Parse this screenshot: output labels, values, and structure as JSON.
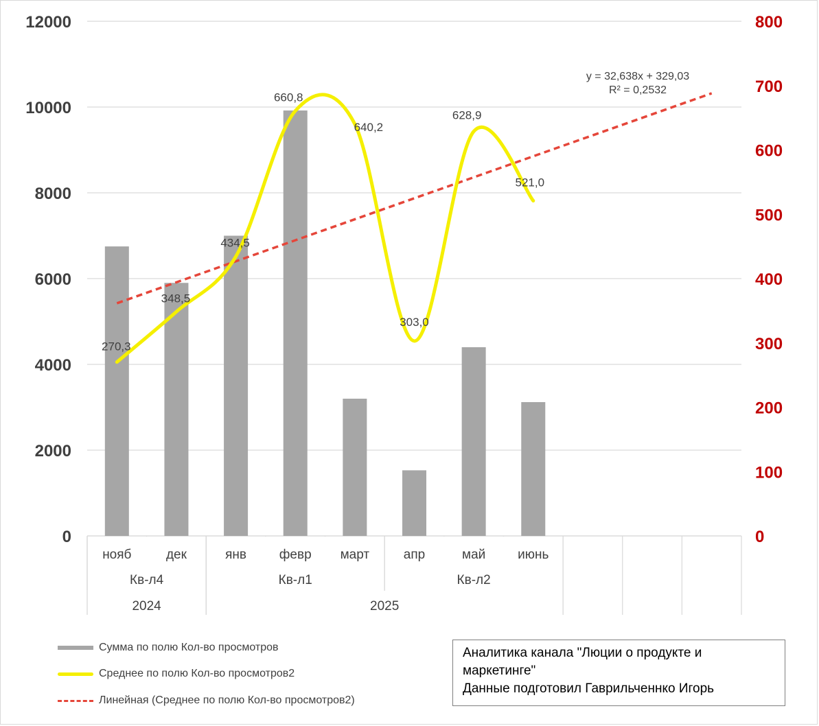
{
  "chart_data": {
    "type": "bar",
    "categories": [
      "нояб",
      "дек",
      "янв",
      "февр",
      "март",
      "апр",
      "май",
      "июнь"
    ],
    "empty_categories": 3,
    "category_groups": {
      "quarters": [
        {
          "label": "Кв-л4",
          "span": [
            0,
            1
          ]
        },
        {
          "label": "Кв-л1",
          "span": [
            2,
            4
          ]
        },
        {
          "label": "Кв-л2",
          "span": [
            5,
            7
          ]
        }
      ],
      "years": [
        {
          "label": "2024",
          "span": [
            0,
            1
          ]
        },
        {
          "label": "2025",
          "span": [
            2,
            7
          ]
        }
      ]
    },
    "series": [
      {
        "name": "Сумма по полю Кол-во просмотров",
        "kind": "bar",
        "axis": "left",
        "color": "#a6a6a6",
        "values": [
          6750,
          5900,
          7000,
          9920,
          3200,
          1530,
          4400,
          3120
        ]
      },
      {
        "name": "Среднее по полю Кол-во просмотров2",
        "kind": "smooth-line",
        "axis": "right",
        "color": "#f5ef00",
        "values": [
          270.3,
          348.5,
          434.5,
          660.8,
          640.2,
          303.0,
          628.9,
          521.0
        ],
        "data_labels": [
          "270,3",
          "348,5",
          "434,5",
          "660,8",
          "640,2",
          "303,0",
          "628,9",
          "521,0"
        ]
      },
      {
        "name": "Линейная (Среднее по полю Кол-во просмотров2)",
        "kind": "trendline",
        "axis": "right",
        "color": "#e5463a",
        "slope": 32.638,
        "intercept": 329.03,
        "x_range": [
          1,
          11
        ]
      }
    ],
    "trend_equation": "y = 32,638x + 329,03",
    "trend_r2": "R² = 0,2532",
    "y_left": {
      "ylim": [
        0,
        12000
      ],
      "ticks": [
        "0",
        "2000",
        "4000",
        "6000",
        "8000",
        "10000",
        "12000"
      ],
      "tick_color": "#404040"
    },
    "y_right": {
      "ylim": [
        0,
        800
      ],
      "ticks": [
        "0",
        "100",
        "200",
        "300",
        "400",
        "500",
        "600",
        "700",
        "800"
      ],
      "tick_color": "#c00000"
    },
    "grid": true,
    "legend_position": "bottom-left"
  },
  "note": {
    "lines": [
      "Аналитика канала \"Люции о продукте и",
      "маркетинге\"",
      "Данные подготовил Гаврильченнко Игорь"
    ]
  }
}
